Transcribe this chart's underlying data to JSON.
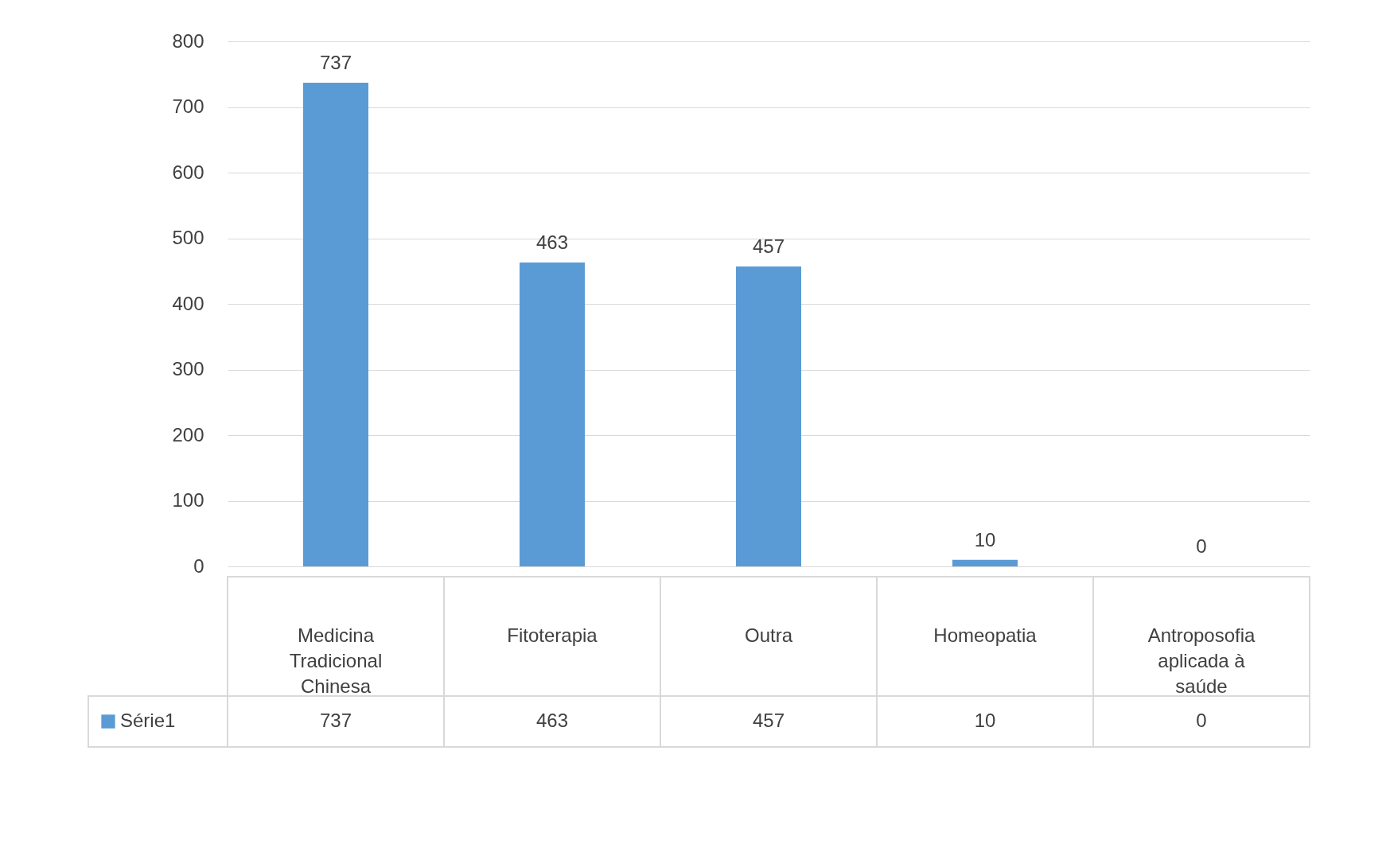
{
  "chart_data": {
    "type": "bar",
    "categories": [
      "Medicina Tradicional Chinesa",
      "Fitoterapia",
      "Outra",
      "Homeopatia",
      "Antroposofia aplicada à saúde"
    ],
    "series": [
      {
        "name": "Série1",
        "color": "#5b9bd5",
        "values": [
          737,
          463,
          457,
          10,
          0
        ],
        "value_labels": [
          "737",
          "463",
          "457",
          "10",
          "0"
        ]
      }
    ],
    "ylim": [
      0,
      800
    ],
    "yticks": [
      0,
      100,
      200,
      300,
      400,
      500,
      600,
      700,
      800
    ],
    "grid": "y",
    "data_labels": true,
    "legend": "bottom"
  }
}
